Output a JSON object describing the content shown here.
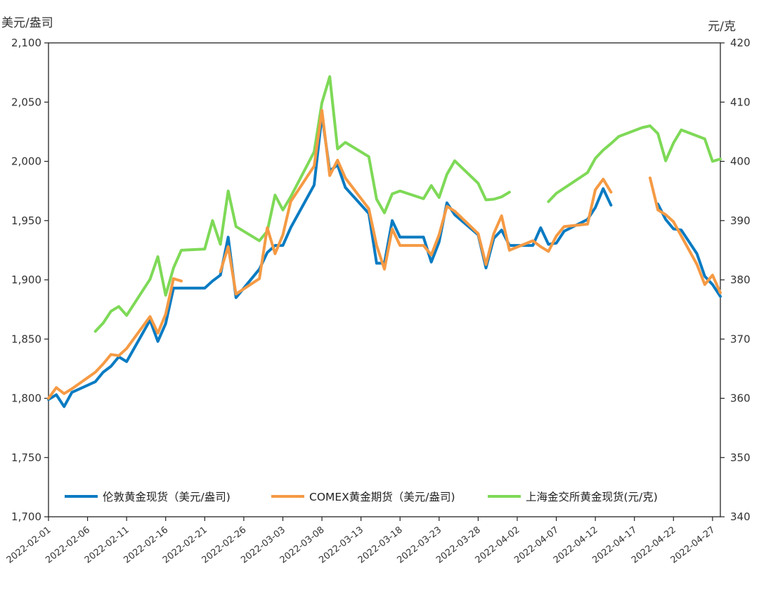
{
  "chart_data": {
    "type": "line",
    "left_axis_unit": "美元/盎司",
    "right_axis_unit": "元/克",
    "left_ylim": [
      1700,
      2100
    ],
    "right_ylim": [
      340,
      420
    ],
    "left_ticks": [
      "1,700",
      "1,750",
      "1,800",
      "1,850",
      "1,900",
      "1,950",
      "2,000",
      "2,050",
      "2,100"
    ],
    "right_ticks": [
      "340",
      "350",
      "360",
      "370",
      "380",
      "390",
      "400",
      "410",
      "420"
    ],
    "x_labels": [
      "2022-02-01",
      "2022-02-06",
      "2022-02-11",
      "2022-02-16",
      "2022-02-21",
      "2022-02-26",
      "2022-03-03",
      "2022-03-08",
      "2022-03-13",
      "2022-03-18",
      "2022-03-23",
      "2022-03-28",
      "2022-04-02",
      "2022-04-07",
      "2022-04-12",
      "2022-04-17",
      "2022-04-22",
      "2022-04-27"
    ],
    "x_start": "2022-02-01",
    "x_end": "2022-04-28",
    "legend_position": "inside-bottom",
    "series": [
      {
        "name": "伦敦黄金现货（美元/盎司)",
        "axis": "left",
        "color": "#0a7bc2",
        "points": [
          [
            "2022-02-01",
            1799
          ],
          [
            "2022-02-02",
            1803
          ],
          [
            "2022-02-03",
            1793
          ],
          [
            "2022-02-04",
            1805
          ],
          [
            "2022-02-07",
            1814
          ],
          [
            "2022-02-08",
            1822
          ],
          [
            "2022-02-09",
            1827
          ],
          [
            "2022-02-10",
            1835
          ],
          [
            "2022-02-11",
            1831
          ],
          [
            "2022-02-14",
            1866
          ],
          [
            "2022-02-15",
            1848
          ],
          [
            "2022-02-16",
            1863
          ],
          [
            "2022-02-17",
            1893
          ],
          [
            "2022-02-18",
            1893
          ],
          [
            "2022-02-21",
            1893
          ],
          [
            "2022-02-22",
            1899
          ],
          [
            "2022-02-23",
            1904
          ],
          [
            "2022-02-24",
            1936
          ],
          [
            "2022-02-25",
            1885
          ],
          [
            "2022-02-28",
            1909
          ],
          [
            "2022-03-01",
            1923
          ],
          [
            "2022-03-02",
            1929
          ],
          [
            "2022-03-03",
            1929
          ],
          [
            "2022-03-04",
            1944
          ],
          [
            "2022-03-07",
            1980
          ],
          [
            "2022-03-08",
            2039
          ],
          [
            "2022-03-09",
            1992
          ],
          [
            "2022-03-10",
            1997
          ],
          [
            "2022-03-11",
            1978
          ],
          [
            "2022-03-14",
            1956
          ],
          [
            "2022-03-15",
            1914
          ],
          [
            "2022-03-16",
            1914
          ],
          [
            "2022-03-17",
            1950
          ],
          [
            "2022-03-18",
            1936
          ],
          [
            "2022-03-21",
            1936
          ],
          [
            "2022-03-22",
            1915
          ],
          [
            "2022-03-23",
            1932
          ],
          [
            "2022-03-24",
            1965
          ],
          [
            "2022-03-25",
            1955
          ],
          [
            "2022-03-28",
            1938
          ],
          [
            "2022-03-29",
            1910
          ],
          [
            "2022-03-30",
            1935
          ],
          [
            "2022-03-31",
            1942
          ],
          [
            "2022-04-01",
            1929
          ],
          [
            "2022-04-04",
            1929
          ],
          [
            "2022-04-05",
            1944
          ],
          [
            "2022-04-06",
            1930
          ],
          [
            "2022-04-07",
            1931
          ],
          [
            "2022-04-08",
            1941
          ],
          [
            "2022-04-11",
            1951
          ],
          [
            "2022-04-12",
            1961
          ],
          [
            "2022-04-13",
            1977
          ],
          [
            "2022-04-14",
            1963
          ],
          null,
          [
            "2022-04-20",
            1964
          ],
          [
            "2022-04-21",
            1951
          ],
          [
            "2022-04-22",
            1943
          ],
          [
            "2022-04-23",
            1942
          ],
          [
            "2022-04-25",
            1922
          ],
          [
            "2022-04-26",
            1903
          ],
          [
            "2022-04-27",
            1896
          ],
          [
            "2022-04-28",
            1886
          ]
        ]
      },
      {
        "name": "COMEX黄金期货（美元/盎司)",
        "axis": "left",
        "color": "#f59a44",
        "points": [
          [
            "2022-02-01",
            1800
          ],
          [
            "2022-02-02",
            1809
          ],
          [
            "2022-02-03",
            1804
          ],
          [
            "2022-02-04",
            1808
          ],
          [
            "2022-02-07",
            1822
          ],
          [
            "2022-02-08",
            1829
          ],
          [
            "2022-02-09",
            1837
          ],
          [
            "2022-02-10",
            1836
          ],
          [
            "2022-02-11",
            1842
          ],
          [
            "2022-02-14",
            1869
          ],
          [
            "2022-02-15",
            1855
          ],
          [
            "2022-02-16",
            1871
          ],
          [
            "2022-02-17",
            1901
          ],
          [
            "2022-02-18",
            1899
          ],
          null,
          [
            "2022-02-23",
            1907
          ],
          [
            "2022-02-24",
            1928
          ],
          [
            "2022-02-25",
            1888
          ],
          [
            "2022-02-28",
            1901
          ],
          [
            "2022-03-01",
            1944
          ],
          [
            "2022-03-02",
            1922
          ],
          [
            "2022-03-03",
            1938
          ],
          [
            "2022-03-04",
            1966
          ],
          [
            "2022-03-07",
            1996
          ],
          [
            "2022-03-08",
            2043
          ],
          [
            "2022-03-09",
            1988
          ],
          [
            "2022-03-10",
            2001
          ],
          [
            "2022-03-11",
            1986
          ],
          [
            "2022-03-14",
            1960
          ],
          [
            "2022-03-15",
            1929
          ],
          [
            "2022-03-16",
            1909
          ],
          [
            "2022-03-17",
            1943
          ],
          [
            "2022-03-18",
            1929
          ],
          [
            "2022-03-21",
            1929
          ],
          [
            "2022-03-22",
            1921
          ],
          [
            "2022-03-23",
            1938
          ],
          [
            "2022-03-24",
            1962
          ],
          [
            "2022-03-25",
            1958
          ],
          [
            "2022-03-28",
            1939
          ],
          [
            "2022-03-29",
            1913
          ],
          [
            "2022-03-30",
            1939
          ],
          [
            "2022-03-31",
            1954
          ],
          [
            "2022-04-01",
            1925
          ],
          [
            "2022-04-04",
            1933
          ],
          [
            "2022-04-05",
            1928
          ],
          [
            "2022-04-06",
            1924
          ],
          [
            "2022-04-07",
            1937
          ],
          [
            "2022-04-08",
            1945
          ],
          [
            "2022-04-11",
            1947
          ],
          [
            "2022-04-12",
            1976
          ],
          [
            "2022-04-13",
            1985
          ],
          [
            "2022-04-14",
            1974
          ],
          null,
          [
            "2022-04-19",
            1986
          ],
          [
            "2022-04-20",
            1959
          ],
          [
            "2022-04-21",
            1955
          ],
          [
            "2022-04-22",
            1949
          ],
          [
            "2022-04-25",
            1913
          ],
          [
            "2022-04-26",
            1896
          ],
          [
            "2022-04-27",
            1904
          ],
          [
            "2022-04-28",
            1889
          ]
        ]
      },
      {
        "name": "上海金交所黄金现货(元/克)",
        "axis": "right",
        "color": "#7ed957",
        "points": [
          [
            "2022-02-07",
            371.3
          ],
          [
            "2022-02-08",
            372.7
          ],
          [
            "2022-02-09",
            374.7
          ],
          [
            "2022-02-10",
            375.5
          ],
          [
            "2022-02-11",
            374.0
          ],
          [
            "2022-02-14",
            380.1
          ],
          [
            "2022-02-15",
            383.9
          ],
          [
            "2022-02-16",
            377.4
          ],
          [
            "2022-02-17",
            382.0
          ],
          [
            "2022-02-18",
            385.0
          ],
          [
            "2022-02-21",
            385.2
          ],
          [
            "2022-02-22",
            390.0
          ],
          [
            "2022-02-23",
            386.0
          ],
          [
            "2022-02-24",
            395.0
          ],
          [
            "2022-02-25",
            389.0
          ],
          [
            "2022-02-28",
            386.6
          ],
          [
            "2022-03-01",
            388.2
          ],
          [
            "2022-03-02",
            394.3
          ],
          [
            "2022-03-03",
            391.8
          ],
          [
            "2022-03-04",
            394.0
          ],
          [
            "2022-03-07",
            401.6
          ],
          [
            "2022-03-08",
            409.9
          ],
          [
            "2022-03-09",
            414.3
          ],
          [
            "2022-03-10",
            402.1
          ],
          [
            "2022-03-11",
            403.2
          ],
          [
            "2022-03-14",
            400.8
          ],
          [
            "2022-03-15",
            393.6
          ],
          [
            "2022-03-16",
            391.3
          ],
          [
            "2022-03-17",
            394.5
          ],
          [
            "2022-03-18",
            395.0
          ],
          [
            "2022-03-21",
            393.7
          ],
          [
            "2022-03-22",
            395.9
          ],
          [
            "2022-03-23",
            393.9
          ],
          [
            "2022-03-24",
            397.8
          ],
          [
            "2022-03-25",
            400.1
          ],
          [
            "2022-03-28",
            396.3
          ],
          [
            "2022-03-29",
            393.5
          ],
          [
            "2022-03-30",
            393.6
          ],
          [
            "2022-03-31",
            394.0
          ],
          [
            "2022-04-01",
            394.8
          ],
          null,
          [
            "2022-04-06",
            393.2
          ],
          [
            "2022-04-07",
            394.6
          ],
          [
            "2022-04-11",
            398.1
          ],
          [
            "2022-04-12",
            400.5
          ],
          [
            "2022-04-13",
            401.9
          ],
          [
            "2022-04-14",
            403.0
          ],
          [
            "2022-04-15",
            404.2
          ],
          [
            "2022-04-18",
            405.7
          ],
          [
            "2022-04-19",
            406.0
          ],
          [
            "2022-04-20",
            404.7
          ],
          [
            "2022-04-21",
            400.1
          ],
          [
            "2022-04-22",
            403.1
          ],
          [
            "2022-04-23",
            405.3
          ],
          [
            "2022-04-26",
            403.8
          ],
          [
            "2022-04-27",
            400.0
          ],
          [
            "2022-04-28",
            400.4
          ]
        ]
      }
    ]
  }
}
